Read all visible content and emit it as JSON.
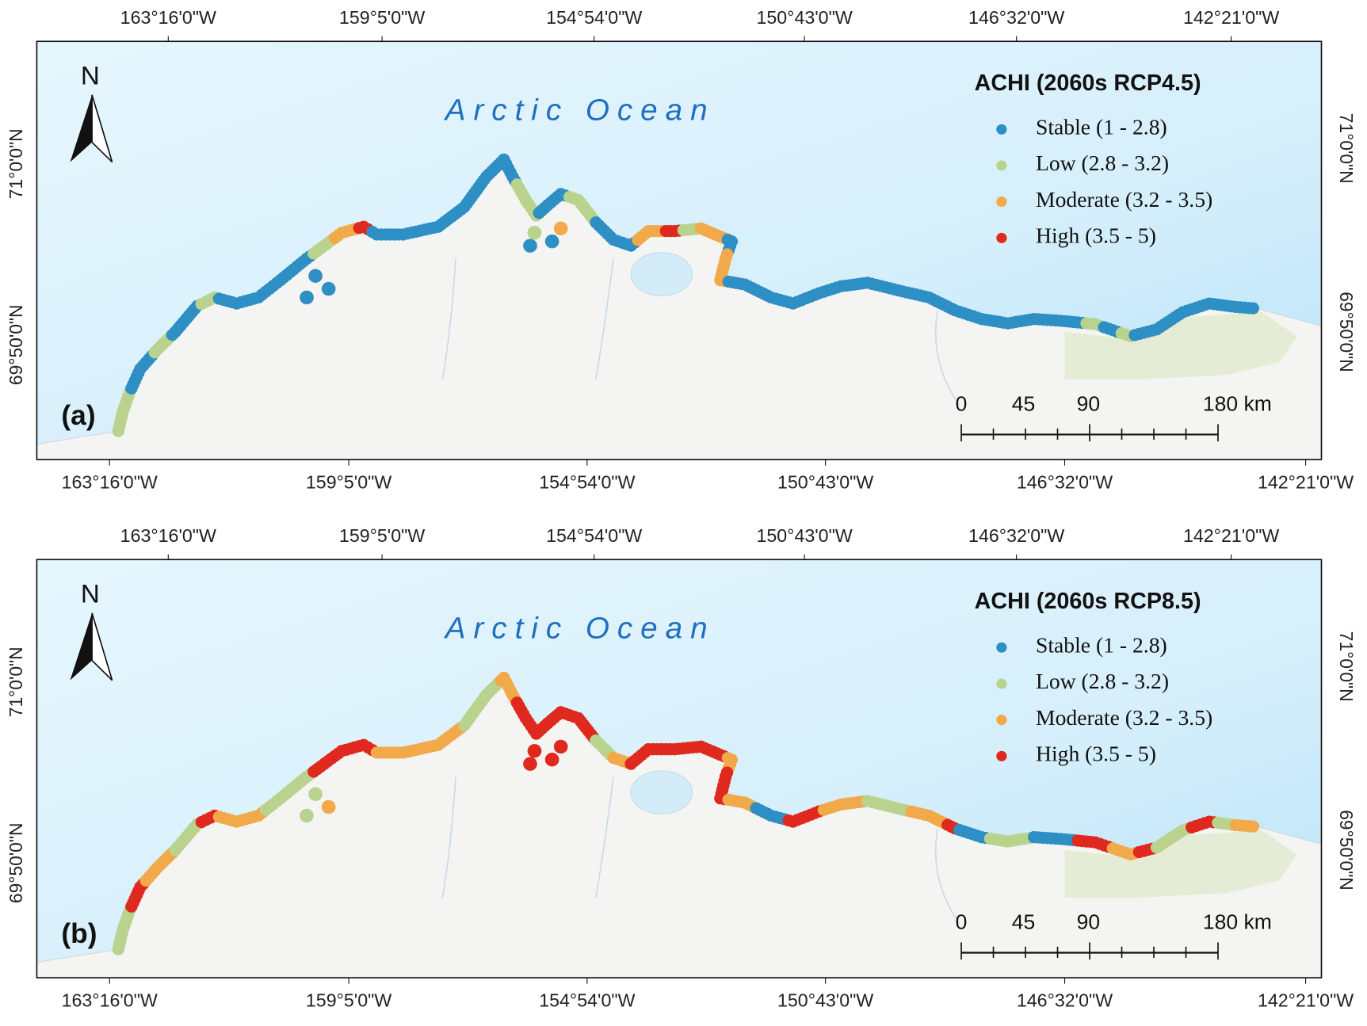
{
  "panels": [
    {
      "label": "(a)",
      "title": "ACHI (2060s RCP4.5)",
      "ocean_label": "Arctic Ocean",
      "north": "N",
      "legend": [
        {
          "label": "Stable (1 - 2.8)",
          "color": "#2e8fc4"
        },
        {
          "label": "Low (2.8 - 3.2)",
          "color": "#b9d38e"
        },
        {
          "label": "Moderate (3.2 - 3.5)",
          "color": "#f2a94a"
        },
        {
          "label": "High (3.5 - 5)",
          "color": "#e0291e"
        }
      ],
      "scale_bar": [
        "0",
        "45",
        "90",
        "180 km"
      ],
      "top_labels": [
        "163°16'0\"W",
        "159°5'0\"W",
        "154°54'0\"W",
        "150°43'0\"W",
        "146°32'0\"W",
        "142°21'0\"W"
      ],
      "bottom_labels": [
        "163°16'0\"W",
        "159°5'0\"W",
        "154°54'0\"W",
        "150°43'0\"W",
        "146°32'0\"W",
        "142°21'0\"W"
      ],
      "left_labels": [
        "71°0'0\"N",
        "69°50'0\"N"
      ],
      "right_labels": [
        "71°0'0\"N",
        "69°50'0\"N"
      ]
    },
    {
      "label": "(b)",
      "title": "ACHI (2060s RCP8.5)",
      "ocean_label": "Arctic Ocean",
      "north": "N",
      "legend": [
        {
          "label": "Stable (1 - 2.8)",
          "color": "#2e8fc4"
        },
        {
          "label": "Low (2.8 - 3.2)",
          "color": "#b9d38e"
        },
        {
          "label": "Moderate (3.2 - 3.5)",
          "color": "#f2a94a"
        },
        {
          "label": "High (3.5 - 5)",
          "color": "#e0291e"
        }
      ],
      "scale_bar": [
        "0",
        "45",
        "90",
        "180 km"
      ],
      "top_labels": [
        "163°16'0\"W",
        "159°5'0\"W",
        "154°54'0\"W",
        "150°43'0\"W",
        "146°32'0\"W",
        "142°21'0\"W"
      ],
      "bottom_labels": [
        "163°16'0\"W",
        "159°5'0\"W",
        "154°54'0\"W",
        "150°43'0\"W",
        "146°32'0\"W",
        "142°21'0\"W"
      ],
      "left_labels": [
        "71°0'0\"N",
        "69°50'0\"N"
      ],
      "right_labels": [
        "71°0'0\"N",
        "69°50'0\"N"
      ]
    }
  ]
}
